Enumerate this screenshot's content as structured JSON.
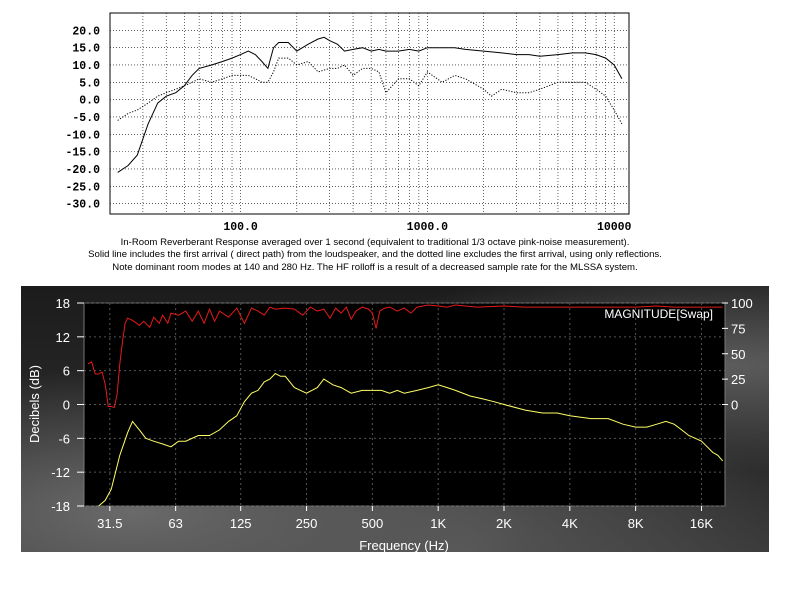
{
  "chart_data": [
    {
      "type": "line",
      "x_scale": "log",
      "xlim": [
        20,
        12000
      ],
      "ylim": [
        -33,
        25
      ],
      "y_ticks": [
        20,
        15,
        10,
        5,
        0,
        -5,
        -10,
        -15,
        -20,
        -25,
        -30
      ],
      "y_tick_labels": [
        "20.0",
        "15.0",
        "10.0",
        "5.0",
        "0.0",
        "-5.0",
        "-10.0",
        "-15.0",
        "-20.0",
        "-25.0",
        "-30.0"
      ],
      "x_tick_labels": [
        {
          "x": 100,
          "label": "100.0"
        },
        {
          "x": 1000,
          "label": "1000.0"
        },
        {
          "x": 10000,
          "label": "10000"
        }
      ],
      "grid": true,
      "series": [
        {
          "style": "solid",
          "points": [
            [
              22,
              -21
            ],
            [
              25,
              -19
            ],
            [
              28,
              -16
            ],
            [
              32,
              -7
            ],
            [
              36,
              -1
            ],
            [
              40,
              1
            ],
            [
              45,
              2
            ],
            [
              50,
              4
            ],
            [
              55,
              7
            ],
            [
              60,
              9
            ],
            [
              70,
              10
            ],
            [
              80,
              11
            ],
            [
              90,
              12
            ],
            [
              100,
              13
            ],
            [
              110,
              14
            ],
            [
              120,
              13
            ],
            [
              130,
              11
            ],
            [
              140,
              9
            ],
            [
              150,
              15
            ],
            [
              160,
              16.5
            ],
            [
              180,
              16.5
            ],
            [
              200,
              14
            ],
            [
              230,
              16
            ],
            [
              260,
              17.5
            ],
            [
              280,
              18
            ],
            [
              300,
              17
            ],
            [
              330,
              16
            ],
            [
              360,
              14
            ],
            [
              400,
              14.5
            ],
            [
              450,
              15
            ],
            [
              500,
              14
            ],
            [
              550,
              14.5
            ],
            [
              600,
              14
            ],
            [
              700,
              14
            ],
            [
              800,
              14.5
            ],
            [
              900,
              14
            ],
            [
              1000,
              15
            ],
            [
              1200,
              15
            ],
            [
              1400,
              15
            ],
            [
              1600,
              14.5
            ],
            [
              2000,
              14
            ],
            [
              2500,
              13.5
            ],
            [
              3000,
              13
            ],
            [
              3500,
              13
            ],
            [
              4000,
              12.5
            ],
            [
              5000,
              13
            ],
            [
              6000,
              13.5
            ],
            [
              7000,
              13.5
            ],
            [
              8000,
              13
            ],
            [
              9000,
              12
            ],
            [
              10000,
              10
            ],
            [
              11000,
              6
            ]
          ]
        },
        {
          "style": "dotted",
          "points": [
            [
              22,
              -6
            ],
            [
              25,
              -4
            ],
            [
              28,
              -3
            ],
            [
              32,
              -1
            ],
            [
              36,
              1
            ],
            [
              40,
              2
            ],
            [
              45,
              3
            ],
            [
              50,
              4
            ],
            [
              55,
              5
            ],
            [
              60,
              6
            ],
            [
              70,
              5
            ],
            [
              80,
              6
            ],
            [
              90,
              7
            ],
            [
              100,
              7
            ],
            [
              110,
              7
            ],
            [
              120,
              6
            ],
            [
              130,
              5
            ],
            [
              140,
              5
            ],
            [
              150,
              8
            ],
            [
              160,
              12
            ],
            [
              180,
              12
            ],
            [
              200,
              10
            ],
            [
              230,
              11
            ],
            [
              260,
              8
            ],
            [
              300,
              9
            ],
            [
              330,
              9
            ],
            [
              360,
              10
            ],
            [
              400,
              7
            ],
            [
              450,
              9
            ],
            [
              500,
              9
            ],
            [
              550,
              8
            ],
            [
              600,
              2
            ],
            [
              700,
              6
            ],
            [
              800,
              6
            ],
            [
              900,
              4
            ],
            [
              1000,
              8
            ],
            [
              1200,
              5
            ],
            [
              1400,
              7
            ],
            [
              1600,
              6
            ],
            [
              2000,
              3
            ],
            [
              2200,
              1
            ],
            [
              2500,
              3
            ],
            [
              3000,
              2
            ],
            [
              3500,
              2
            ],
            [
              4000,
              3
            ],
            [
              5000,
              5
            ],
            [
              6000,
              5
            ],
            [
              7000,
              5
            ],
            [
              8000,
              3
            ],
            [
              9000,
              1
            ],
            [
              10000,
              -3
            ],
            [
              11000,
              -7
            ]
          ]
        }
      ]
    },
    {
      "type": "line",
      "x_scale": "log",
      "xlim": [
        24,
        20500
      ],
      "ylim": [
        -18,
        18
      ],
      "y_ticks": [
        18,
        12,
        6,
        0,
        -6,
        -12,
        -18
      ],
      "y_tick_labels": [
        "18",
        "12",
        "6",
        "0",
        "-6",
        "-12",
        "-18"
      ],
      "y2_ticks": [
        100,
        75,
        50,
        25,
        0
      ],
      "y2_tick_labels": [
        "100",
        "75",
        "50",
        "25",
        "0"
      ],
      "y2lim": [
        -100,
        100
      ],
      "x_ticks": [
        31.5,
        63,
        125,
        250,
        500,
        1000,
        2000,
        4000,
        8000,
        16000
      ],
      "x_tick_labels": [
        "31.5",
        "63",
        "125",
        "250",
        "500",
        "1K",
        "2K",
        "4K",
        "8K",
        "16K"
      ],
      "xlabel": "Frequency (Hz)",
      "ylabel": "Decibels (dB)",
      "grid": true,
      "series": [
        {
          "color": "#ffff66",
          "axis": "left",
          "points": [
            [
              28,
              -18
            ],
            [
              30,
              -17
            ],
            [
              32,
              -15
            ],
            [
              35,
              -9
            ],
            [
              38,
              -5
            ],
            [
              40,
              -3
            ],
            [
              43,
              -4.5
            ],
            [
              46,
              -6
            ],
            [
              50,
              -6.5
            ],
            [
              55,
              -7
            ],
            [
              60,
              -7.5
            ],
            [
              65,
              -6.5
            ],
            [
              70,
              -6.5
            ],
            [
              80,
              -5.5
            ],
            [
              90,
              -5.5
            ],
            [
              100,
              -4.5
            ],
            [
              110,
              -3
            ],
            [
              120,
              -2
            ],
            [
              130,
              0.5
            ],
            [
              140,
              2
            ],
            [
              150,
              2.5
            ],
            [
              160,
              4
            ],
            [
              170,
              4.5
            ],
            [
              180,
              5.5
            ],
            [
              190,
              5
            ],
            [
              200,
              5
            ],
            [
              220,
              3
            ],
            [
              250,
              2
            ],
            [
              280,
              3
            ],
            [
              300,
              4.5
            ],
            [
              330,
              3.5
            ],
            [
              360,
              3
            ],
            [
              400,
              2
            ],
            [
              450,
              2.5
            ],
            [
              500,
              2.5
            ],
            [
              550,
              2.5
            ],
            [
              600,
              2
            ],
            [
              650,
              2.5
            ],
            [
              700,
              2
            ],
            [
              800,
              2.5
            ],
            [
              900,
              3
            ],
            [
              1000,
              3.5
            ],
            [
              1100,
              3
            ],
            [
              1200,
              2.5
            ],
            [
              1400,
              1.5
            ],
            [
              1600,
              1
            ],
            [
              1800,
              0.5
            ],
            [
              2000,
              0
            ],
            [
              2500,
              -1
            ],
            [
              3000,
              -1.5
            ],
            [
              3500,
              -1.5
            ],
            [
              4000,
              -2
            ],
            [
              5000,
              -2.5
            ],
            [
              6000,
              -2.5
            ],
            [
              7000,
              -3.5
            ],
            [
              8000,
              -4
            ],
            [
              9000,
              -4
            ],
            [
              10000,
              -3.5
            ],
            [
              11000,
              -3
            ],
            [
              12000,
              -3.5
            ],
            [
              13000,
              -4.5
            ],
            [
              14000,
              -5.5
            ],
            [
              15000,
              -6
            ],
            [
              16000,
              -6.5
            ],
            [
              17000,
              -7.5
            ],
            [
              18000,
              -8.5
            ],
            [
              19000,
              -9
            ],
            [
              20000,
              -10
            ]
          ]
        },
        {
          "color": "#e41a1a",
          "axis": "right",
          "points": [
            [
              25,
              40
            ],
            [
              26,
              42
            ],
            [
              27,
              30
            ],
            [
              28,
              30
            ],
            [
              29,
              32
            ],
            [
              30,
              20
            ],
            [
              31,
              -2
            ],
            [
              32,
              -2
            ],
            [
              33,
              -3
            ],
            [
              34,
              10
            ],
            [
              35,
              40
            ],
            [
              36,
              62
            ],
            [
              37,
              80
            ],
            [
              38,
              85
            ],
            [
              40,
              83
            ],
            [
              43,
              78
            ],
            [
              45,
              82
            ],
            [
              48,
              76
            ],
            [
              50,
              86
            ],
            [
              53,
              80
            ],
            [
              55,
              88
            ],
            [
              58,
              80
            ],
            [
              60,
              90
            ],
            [
              65,
              88
            ],
            [
              70,
              92
            ],
            [
              75,
              82
            ],
            [
              80,
              92
            ],
            [
              85,
              80
            ],
            [
              90,
              94
            ],
            [
              95,
              82
            ],
            [
              100,
              92
            ],
            [
              110,
              86
            ],
            [
              120,
              95
            ],
            [
              130,
              80
            ],
            [
              140,
              95
            ],
            [
              150,
              92
            ],
            [
              160,
              88
            ],
            [
              170,
              96
            ],
            [
              180,
              94
            ],
            [
              200,
              95
            ],
            [
              220,
              94
            ],
            [
              240,
              88
            ],
            [
              260,
              96
            ],
            [
              280,
              92
            ],
            [
              300,
              94
            ],
            [
              320,
              85
            ],
            [
              340,
              95
            ],
            [
              360,
              90
            ],
            [
              380,
              96
            ],
            [
              400,
              84
            ],
            [
              420,
              92
            ],
            [
              450,
              96
            ],
            [
              480,
              94
            ],
            [
              500,
              90
            ],
            [
              520,
              75
            ],
            [
              540,
              92
            ],
            [
              570,
              95
            ],
            [
              600,
              96
            ],
            [
              650,
              92
            ],
            [
              700,
              95
            ],
            [
              750,
              90
            ],
            [
              800,
              96
            ],
            [
              900,
              98
            ],
            [
              1000,
              97
            ],
            [
              1100,
              96
            ],
            [
              1200,
              98
            ],
            [
              1500,
              96
            ],
            [
              2000,
              97
            ],
            [
              2500,
              96
            ],
            [
              3000,
              96
            ],
            [
              4000,
              96
            ],
            [
              5000,
              96
            ],
            [
              6000,
              96
            ],
            [
              8000,
              96
            ],
            [
              10000,
              97
            ],
            [
              12000,
              96
            ],
            [
              16000,
              96
            ],
            [
              20000,
              96
            ]
          ]
        }
      ],
      "legend": "MAGNITUDE[Swap]"
    }
  ],
  "caption": [
    "In-Room Reverberant Response averaged over 1 second (equivalent to traditional 1/3 octave pink-noise measurement).",
    "Solid line includes the first arrival ( direct path) from the loudspeaker, and the dotted line excludes the first arrival, using only reflections.",
    "Note dominant room modes at 140 and 280 Hz. The HF rolloff is a result of a decreased sample rate for the MLSSA system."
  ]
}
